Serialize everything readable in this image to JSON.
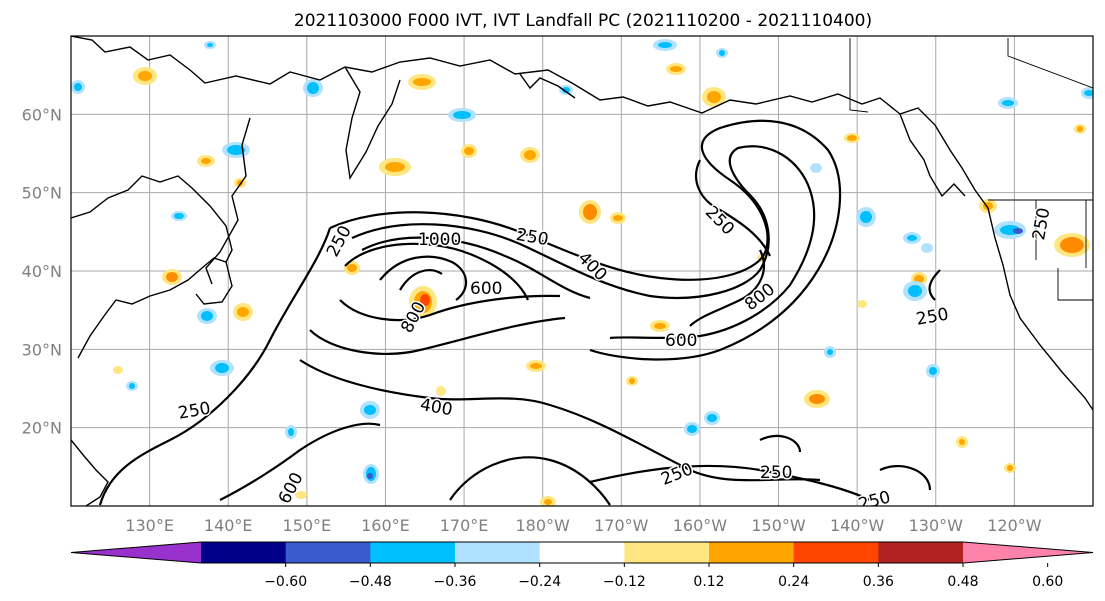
{
  "title": "2021103000 F000 IVT, IVT Landfall PC (2021110200 - 2021110400)",
  "lat_labels": [
    {
      "value": 60,
      "label": "60°N"
    },
    {
      "value": 50,
      "label": "50°N"
    },
    {
      "value": 40,
      "label": "40°N"
    },
    {
      "value": 30,
      "label": "30°N"
    },
    {
      "value": 20,
      "label": "20°N"
    }
  ],
  "lon_labels": [
    {
      "value": 130,
      "label": "130°E"
    },
    {
      "value": 140,
      "label": "140°E"
    },
    {
      "value": 150,
      "label": "150°E"
    },
    {
      "value": 160,
      "label": "160°E"
    },
    {
      "value": 170,
      "label": "170°E"
    },
    {
      "value": 180,
      "label": "180°W"
    },
    {
      "value": 190,
      "label": "170°W"
    },
    {
      "value": 200,
      "label": "160°W"
    },
    {
      "value": 210,
      "label": "150°W"
    },
    {
      "value": 220,
      "label": "140°W"
    },
    {
      "value": 230,
      "label": "130°W"
    },
    {
      "value": 240,
      "label": "120°W"
    }
  ],
  "map_extent": {
    "lon_min": 120,
    "lon_max": 250,
    "lat_min": 10,
    "lat_max": 70
  },
  "ivt_contour_labels": [
    "250",
    "400",
    "600",
    "800",
    "1000"
  ],
  "colorbar": {
    "ticks": [
      "−0.60",
      "−0.48",
      "−0.36",
      "−0.24",
      "−0.12",
      "0.12",
      "0.24",
      "0.36",
      "0.48",
      "0.60"
    ],
    "colors": [
      "#9932cc",
      "#00008b",
      "#3a5bcd",
      "#00bfff",
      "#b0e2ff",
      "#ffffff",
      "#ffe680",
      "#ffa500",
      "#ff4500",
      "#b22222",
      "#ff82ab"
    ]
  }
}
